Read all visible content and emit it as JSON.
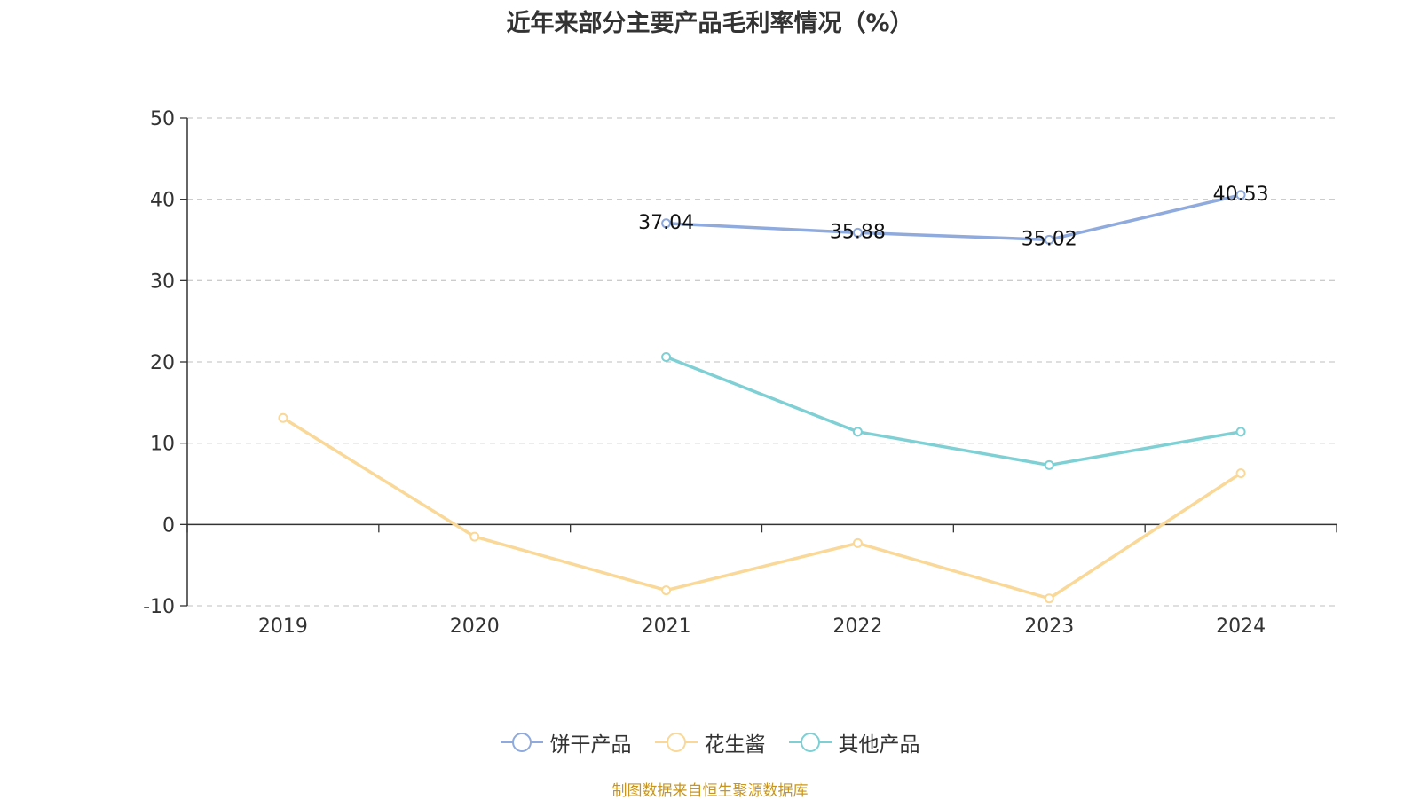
{
  "colors": {
    "biscuit": "#8faadc",
    "peanut": "#f9d898",
    "other": "#7fd0d5",
    "source": "#c8961e"
  },
  "chart_data": {
    "type": "line",
    "title": "近年来部分主要产品毛利率情况（%）",
    "categories": [
      "2019",
      "2020",
      "2021",
      "2022",
      "2023",
      "2024"
    ],
    "ylim": [
      -10,
      50
    ],
    "yticks": [
      "50",
      "40",
      "30",
      "20",
      "10",
      "0",
      "-10"
    ],
    "grid": true,
    "legend_position": "bottom-center",
    "series": [
      {
        "name": "饼干产品",
        "key": "biscuit",
        "values": [
          null,
          null,
          37.04,
          35.88,
          35.02,
          40.53
        ],
        "labels": [
          null,
          null,
          "37.04",
          "35.88",
          "35.02",
          "40.53"
        ]
      },
      {
        "name": "花生酱",
        "key": "peanut",
        "values": [
          13.1,
          -1.5,
          -8.1,
          -2.3,
          -9.1,
          6.3
        ]
      },
      {
        "name": "其他产品",
        "key": "other",
        "values": [
          null,
          null,
          20.6,
          11.4,
          7.3,
          11.4
        ]
      }
    ]
  },
  "footer": {
    "source": "制图数据来自恒生聚源数据库"
  }
}
